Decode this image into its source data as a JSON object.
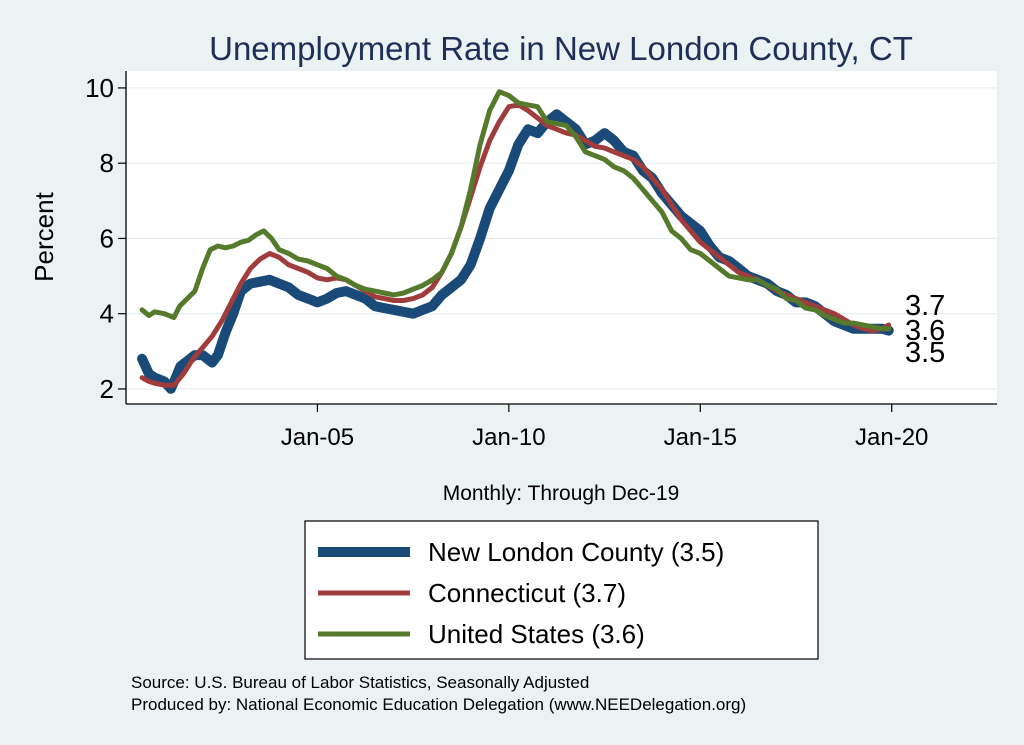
{
  "chart_data": {
    "type": "line",
    "title": "Unemployment Rate in New London  County, CT",
    "ylabel": "Percent",
    "xlabel": "Monthly: Through Dec-19",
    "xlim": [
      2000.0,
      2022.75
    ],
    "ylim": [
      1.6,
      10.45
    ],
    "yticks": [
      2,
      4,
      6,
      8,
      10
    ],
    "xticks": [
      {
        "value": 2005,
        "label": "Jan-05"
      },
      {
        "value": 2010,
        "label": "Jan-10"
      },
      {
        "value": 2015,
        "label": "Jan-15"
      },
      {
        "value": 2020,
        "label": "Jan-20"
      }
    ],
    "series": [
      {
        "name": "New London  County",
        "legend": "New London  County (3.5)",
        "color": "#1a4a78",
        "end_label": "3.5",
        "x": [
          2000.42,
          2000.6,
          2000.75,
          2001.0,
          2001.17,
          2001.3,
          2001.42,
          2001.55,
          2001.8,
          2002.0,
          2002.25,
          2002.4,
          2002.6,
          2002.8,
          2003.0,
          2003.25,
          2003.5,
          2003.75,
          2004.0,
          2004.25,
          2004.5,
          2004.75,
          2005.0,
          2005.25,
          2005.5,
          2005.75,
          2006.0,
          2006.25,
          2006.5,
          2006.75,
          2007.0,
          2007.25,
          2007.5,
          2007.75,
          2008.0,
          2008.25,
          2008.5,
          2008.75,
          2009.0,
          2009.25,
          2009.5,
          2009.75,
          2010.0,
          2010.25,
          2010.5,
          2010.75,
          2011.0,
          2011.25,
          2011.5,
          2011.75,
          2012.0,
          2012.25,
          2012.5,
          2012.75,
          2013.0,
          2013.25,
          2013.5,
          2013.75,
          2014.0,
          2014.25,
          2014.5,
          2014.75,
          2015.0,
          2015.25,
          2015.5,
          2015.75,
          2016.0,
          2016.25,
          2016.5,
          2016.75,
          2017.0,
          2017.25,
          2017.5,
          2017.75,
          2018.0,
          2018.25,
          2018.5,
          2018.75,
          2019.0,
          2019.25,
          2019.5,
          2019.75,
          2019.92
        ],
        "y": [
          2.8,
          2.4,
          2.3,
          2.2,
          2.0,
          2.3,
          2.6,
          2.7,
          2.9,
          2.9,
          2.7,
          2.9,
          3.5,
          4.0,
          4.6,
          4.8,
          4.85,
          4.9,
          4.8,
          4.7,
          4.5,
          4.4,
          4.3,
          4.4,
          4.55,
          4.6,
          4.5,
          4.4,
          4.2,
          4.15,
          4.1,
          4.05,
          4.0,
          4.1,
          4.2,
          4.5,
          4.7,
          4.9,
          5.3,
          6.0,
          6.8,
          7.3,
          7.8,
          8.5,
          8.9,
          8.8,
          9.1,
          9.3,
          9.1,
          8.9,
          8.5,
          8.6,
          8.8,
          8.6,
          8.3,
          8.2,
          7.8,
          7.6,
          7.2,
          6.9,
          6.6,
          6.4,
          6.2,
          5.8,
          5.5,
          5.4,
          5.2,
          5.0,
          4.9,
          4.8,
          4.6,
          4.5,
          4.3,
          4.3,
          4.2,
          4.0,
          3.8,
          3.7,
          3.6,
          3.6,
          3.6,
          3.6,
          3.55
        ]
      },
      {
        "name": "Connecticut",
        "legend": "Connecticut (3.7)",
        "color": "#a03c3c",
        "end_label": "3.7",
        "x": [
          2000.42,
          2000.6,
          2000.75,
          2001.0,
          2001.25,
          2001.5,
          2001.75,
          2002.0,
          2002.25,
          2002.5,
          2002.75,
          2003.0,
          2003.25,
          2003.5,
          2003.75,
          2004.0,
          2004.25,
          2004.5,
          2004.75,
          2005.0,
          2005.25,
          2005.5,
          2005.75,
          2006.0,
          2006.25,
          2006.5,
          2006.75,
          2007.0,
          2007.25,
          2007.5,
          2007.75,
          2008.0,
          2008.25,
          2008.5,
          2008.75,
          2009.0,
          2009.25,
          2009.5,
          2009.75,
          2010.0,
          2010.25,
          2010.5,
          2010.75,
          2011.0,
          2011.25,
          2011.5,
          2011.75,
          2012.0,
          2012.25,
          2012.5,
          2012.75,
          2013.0,
          2013.25,
          2013.5,
          2013.75,
          2014.0,
          2014.25,
          2014.5,
          2014.75,
          2015.0,
          2015.25,
          2015.5,
          2015.75,
          2016.0,
          2016.25,
          2016.5,
          2016.75,
          2017.0,
          2017.25,
          2017.5,
          2017.75,
          2018.0,
          2018.25,
          2018.5,
          2018.75,
          2019.0,
          2019.25,
          2019.5,
          2019.75,
          2019.92
        ],
        "y": [
          2.3,
          2.2,
          2.15,
          2.1,
          2.1,
          2.4,
          2.8,
          3.1,
          3.4,
          3.8,
          4.3,
          4.8,
          5.2,
          5.45,
          5.6,
          5.5,
          5.3,
          5.2,
          5.1,
          4.95,
          4.9,
          4.95,
          4.9,
          4.75,
          4.6,
          4.45,
          4.4,
          4.35,
          4.35,
          4.4,
          4.5,
          4.7,
          5.1,
          5.6,
          6.3,
          7.1,
          7.9,
          8.6,
          9.1,
          9.5,
          9.55,
          9.4,
          9.2,
          9.0,
          8.9,
          8.8,
          8.75,
          8.6,
          8.45,
          8.4,
          8.3,
          8.2,
          8.1,
          7.9,
          7.6,
          7.3,
          6.9,
          6.5,
          6.2,
          5.9,
          5.7,
          5.5,
          5.3,
          5.1,
          5.0,
          4.9,
          4.75,
          4.6,
          4.5,
          4.4,
          4.3,
          4.2,
          4.1,
          4.0,
          3.85,
          3.7,
          3.6,
          3.55,
          3.6,
          3.7
        ]
      },
      {
        "name": "United States",
        "legend": "United States (3.6)",
        "color": "#567a2c",
        "end_label": "3.6",
        "x": [
          2000.42,
          2000.6,
          2000.75,
          2001.0,
          2001.25,
          2001.4,
          2001.6,
          2001.8,
          2002.0,
          2002.2,
          2002.4,
          2002.6,
          2002.8,
          2003.0,
          2003.2,
          2003.4,
          2003.6,
          2003.8,
          2004.0,
          2004.25,
          2004.5,
          2004.75,
          2005.0,
          2005.25,
          2005.5,
          2005.75,
          2006.0,
          2006.25,
          2006.5,
          2006.75,
          2007.0,
          2007.25,
          2007.5,
          2007.75,
          2008.0,
          2008.25,
          2008.5,
          2008.75,
          2009.0,
          2009.25,
          2009.5,
          2009.75,
          2010.0,
          2010.25,
          2010.5,
          2010.75,
          2011.0,
          2011.25,
          2011.5,
          2011.75,
          2012.0,
          2012.25,
          2012.5,
          2012.75,
          2013.0,
          2013.25,
          2013.5,
          2013.75,
          2014.0,
          2014.25,
          2014.5,
          2014.75,
          2015.0,
          2015.25,
          2015.5,
          2015.75,
          2016.0,
          2016.25,
          2016.5,
          2016.75,
          2017.0,
          2017.25,
          2017.5,
          2017.75,
          2018.0,
          2018.25,
          2018.5,
          2018.75,
          2019.0,
          2019.25,
          2019.5,
          2019.75,
          2019.92
        ],
        "y": [
          4.1,
          3.95,
          4.05,
          4.0,
          3.9,
          4.2,
          4.4,
          4.6,
          5.2,
          5.7,
          5.8,
          5.75,
          5.8,
          5.9,
          5.95,
          6.1,
          6.2,
          6.0,
          5.7,
          5.6,
          5.45,
          5.4,
          5.3,
          5.2,
          5.0,
          4.9,
          4.75,
          4.65,
          4.6,
          4.55,
          4.5,
          4.55,
          4.65,
          4.75,
          4.9,
          5.1,
          5.6,
          6.3,
          7.3,
          8.5,
          9.4,
          9.9,
          9.8,
          9.6,
          9.55,
          9.5,
          9.1,
          9.05,
          9.0,
          8.7,
          8.3,
          8.2,
          8.1,
          7.9,
          7.8,
          7.6,
          7.3,
          7.0,
          6.7,
          6.2,
          6.0,
          5.7,
          5.6,
          5.4,
          5.2,
          5.0,
          4.95,
          4.9,
          4.9,
          4.75,
          4.65,
          4.4,
          4.35,
          4.15,
          4.1,
          3.95,
          3.85,
          3.75,
          3.75,
          3.7,
          3.65,
          3.6,
          3.6
        ]
      }
    ]
  },
  "source_line": "Source: U.S. Bureau of Labor Statistics, Seasonally Adjusted",
  "produced_line": "Produced by: National Economic Education Delegation (www.NEEDelegation.org)"
}
